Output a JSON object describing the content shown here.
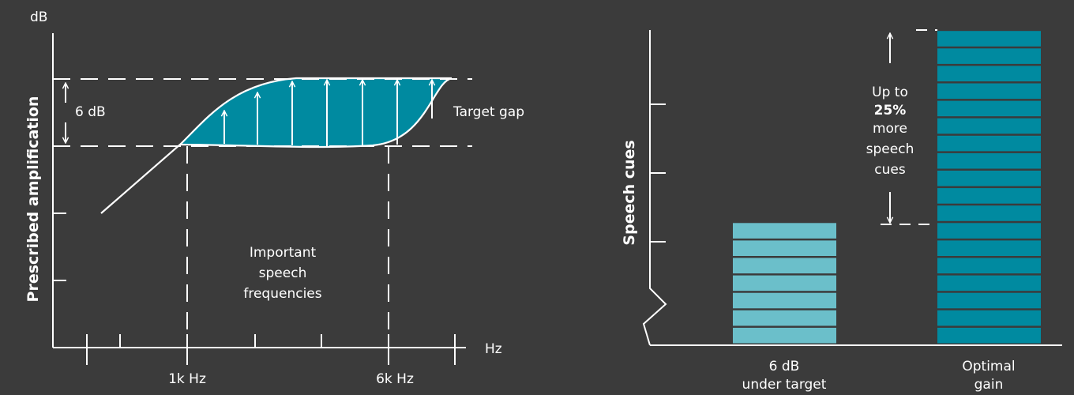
{
  "left": {
    "y_unit": "dB",
    "x_unit": "Hz",
    "y_axis_label": "Prescribed amplification",
    "gap_label": "6 dB",
    "target_gap_label": "Target gap",
    "tick_1k": "1k Hz",
    "tick_6k": "6k Hz",
    "region_lines": [
      "Important",
      "speech",
      "frequencies"
    ]
  },
  "right": {
    "y_axis_label": "Speech cues",
    "annotation": {
      "line1": "Up to",
      "percent": "25%",
      "line3": "more",
      "line4": "speech",
      "line5": "cues"
    },
    "bars": [
      {
        "label_line1": "6 dB",
        "label_line2": "under target",
        "color": "#6bbfca",
        "segments": 7
      },
      {
        "label_line1": "Optimal",
        "label_line2": "gain",
        "color": "#008aa0",
        "segments": 18
      }
    ]
  },
  "colors": {
    "background": "#3b3b3b",
    "fill_teal": "#008aa0",
    "light_teal": "#6bbfca",
    "line": "#ffffff"
  }
}
